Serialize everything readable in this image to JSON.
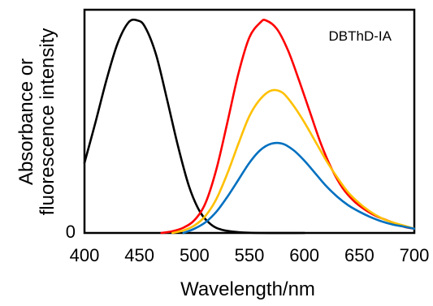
{
  "chart_data": {
    "type": "line",
    "title": "",
    "annotation": "DBThD-IA",
    "xlabel": "Wavelength/nm",
    "ylabel": [
      "Absorbance or",
      "fluorescence intensity"
    ],
    "xlim": [
      400,
      700
    ],
    "ylim": [
      0,
      1.05
    ],
    "x_ticks": [
      400,
      450,
      500,
      550,
      600,
      650,
      700
    ],
    "y_tick_labels": [
      "0"
    ],
    "grid": false,
    "series": [
      {
        "color": "#000000",
        "points": [
          [
            400,
            0.33
          ],
          [
            410,
            0.52
          ],
          [
            420,
            0.72
          ],
          [
            430,
            0.89
          ],
          [
            440,
            0.99
          ],
          [
            448,
            1.0
          ],
          [
            455,
            0.97
          ],
          [
            465,
            0.84
          ],
          [
            475,
            0.63
          ],
          [
            485,
            0.41
          ],
          [
            495,
            0.22
          ],
          [
            505,
            0.1
          ],
          [
            515,
            0.04
          ],
          [
            525,
            0.015
          ],
          [
            540,
            0.004
          ],
          [
            560,
            0.0
          ],
          [
            600,
            0.0
          ]
        ]
      },
      {
        "color": "#FF0000",
        "points": [
          [
            470,
            0.0
          ],
          [
            480,
            0.008
          ],
          [
            490,
            0.025
          ],
          [
            500,
            0.06
          ],
          [
            510,
            0.14
          ],
          [
            520,
            0.3
          ],
          [
            530,
            0.52
          ],
          [
            540,
            0.75
          ],
          [
            550,
            0.92
          ],
          [
            560,
            0.99
          ],
          [
            565,
            1.0
          ],
          [
            575,
            0.96
          ],
          [
            585,
            0.86
          ],
          [
            595,
            0.72
          ],
          [
            605,
            0.57
          ],
          [
            615,
            0.42
          ],
          [
            625,
            0.3
          ],
          [
            635,
            0.21
          ],
          [
            645,
            0.15
          ],
          [
            655,
            0.11
          ],
          [
            665,
            0.08
          ],
          [
            675,
            0.06
          ],
          [
            690,
            0.03
          ],
          [
            700,
            0.02
          ]
        ]
      },
      {
        "color": "#FFC000",
        "points": [
          [
            480,
            0.0
          ],
          [
            490,
            0.012
          ],
          [
            500,
            0.035
          ],
          [
            510,
            0.08
          ],
          [
            520,
            0.16
          ],
          [
            530,
            0.28
          ],
          [
            540,
            0.42
          ],
          [
            550,
            0.55
          ],
          [
            560,
            0.63
          ],
          [
            570,
            0.67
          ],
          [
            580,
            0.66
          ],
          [
            590,
            0.6
          ],
          [
            600,
            0.52
          ],
          [
            610,
            0.43
          ],
          [
            620,
            0.34
          ],
          [
            630,
            0.26
          ],
          [
            640,
            0.19
          ],
          [
            650,
            0.14
          ],
          [
            660,
            0.1
          ],
          [
            670,
            0.07
          ],
          [
            680,
            0.05
          ],
          [
            690,
            0.035
          ],
          [
            700,
            0.02
          ]
        ]
      },
      {
        "color": "#0070C0",
        "points": [
          [
            490,
            0.0
          ],
          [
            500,
            0.02
          ],
          [
            510,
            0.05
          ],
          [
            520,
            0.1
          ],
          [
            530,
            0.17
          ],
          [
            540,
            0.25
          ],
          [
            550,
            0.33
          ],
          [
            560,
            0.39
          ],
          [
            570,
            0.42
          ],
          [
            580,
            0.42
          ],
          [
            590,
            0.39
          ],
          [
            600,
            0.34
          ],
          [
            610,
            0.28
          ],
          [
            620,
            0.22
          ],
          [
            630,
            0.17
          ],
          [
            640,
            0.13
          ],
          [
            650,
            0.1
          ],
          [
            660,
            0.075
          ],
          [
            670,
            0.055
          ],
          [
            680,
            0.04
          ],
          [
            690,
            0.03
          ],
          [
            700,
            0.02
          ]
        ]
      }
    ]
  }
}
